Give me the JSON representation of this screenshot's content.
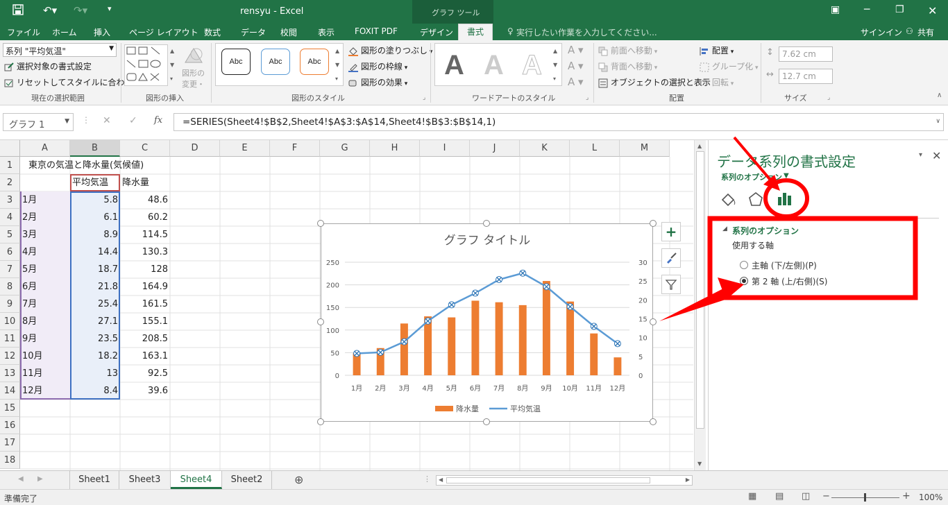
{
  "window": {
    "title": "rensyu - Excel",
    "context_group": "グラフ ツール"
  },
  "account": {
    "signin": "サインイン",
    "share": "共有"
  },
  "tabs": [
    {
      "label": "ファイル"
    },
    {
      "label": "ホーム"
    },
    {
      "label": "挿入"
    },
    {
      "label": "ページ レイアウト"
    },
    {
      "label": "数式"
    },
    {
      "label": "データ"
    },
    {
      "label": "校閲"
    },
    {
      "label": "表示"
    },
    {
      "label": "FOXIT PDF"
    },
    {
      "label": "デザイン"
    },
    {
      "label": "書式"
    }
  ],
  "tell_me": "実行したい作業を入力してください...",
  "ribbon": {
    "selection": {
      "dropdown": "系列 \"平均気温\"",
      "format_selection": "選択対象の書式設定",
      "reset": "リセットしてスタイルに合わせる",
      "label": "現在の選択範囲"
    },
    "insert_shapes": {
      "change_shape_1": "図形の",
      "change_shape_2": "変更・",
      "label": "図形の挿入"
    },
    "shape_styles": {
      "samples": [
        "Abc",
        "Abc",
        "Abc"
      ],
      "fill": "図形の塗りつぶし",
      "outline": "図形の枠線",
      "effects": "図形の効果",
      "label": "図形のスタイル"
    },
    "wordart": {
      "samples": [
        "A",
        "A",
        "A"
      ],
      "label": "ワードアートのスタイル"
    },
    "arrange": {
      "bring_forward": "前面へ移動",
      "send_backward": "背面へ移動",
      "selection_pane": "オブジェクトの選択と表示",
      "align": "配置",
      "group": "グループ化",
      "rotate": "回転",
      "label": "配置"
    },
    "size": {
      "height": "7.62 cm",
      "width": "12.7 cm",
      "label": "サイズ"
    }
  },
  "formula_bar": {
    "name_box": "グラフ 1",
    "fx": "fx",
    "formula": "=SERIES(Sheet4!$B$2,Sheet4!$A$3:$A$14,Sheet4!$B$3:$B$14,1)"
  },
  "grid": {
    "columns": [
      "A",
      "B",
      "C",
      "D",
      "E",
      "F",
      "G",
      "H",
      "I",
      "J",
      "K",
      "L",
      "M"
    ],
    "rows": [
      "1",
      "2",
      "3",
      "4",
      "5",
      "6",
      "7",
      "8",
      "9",
      "10",
      "11",
      "12",
      "13",
      "14",
      "15",
      "16",
      "17",
      "18"
    ],
    "title_cell": "東京の気温と降水量(気候値)",
    "header_b": "平均気温",
    "header_c": "降水量",
    "data": [
      {
        "month": "1月",
        "temp": "5.8",
        "rain": "48.6"
      },
      {
        "month": "2月",
        "temp": "6.1",
        "rain": "60.2"
      },
      {
        "month": "3月",
        "temp": "8.9",
        "rain": "114.5"
      },
      {
        "month": "4月",
        "temp": "14.4",
        "rain": "130.3"
      },
      {
        "month": "5月",
        "temp": "18.7",
        "rain": "128"
      },
      {
        "month": "6月",
        "temp": "21.8",
        "rain": "164.9"
      },
      {
        "month": "7月",
        "temp": "25.4",
        "rain": "161.5"
      },
      {
        "month": "8月",
        "temp": "27.1",
        "rain": "155.1"
      },
      {
        "month": "9月",
        "temp": "23.5",
        "rain": "208.5"
      },
      {
        "month": "10月",
        "temp": "18.2",
        "rain": "163.1"
      },
      {
        "month": "11月",
        "temp": "13",
        "rain": "92.5"
      },
      {
        "month": "12月",
        "temp": "8.4",
        "rain": "39.6"
      }
    ]
  },
  "chart_data": {
    "type": "bar",
    "title": "グラフ タイトル",
    "categories": [
      "1月",
      "2月",
      "3月",
      "4月",
      "5月",
      "6月",
      "7月",
      "8月",
      "9月",
      "10月",
      "11月",
      "12月"
    ],
    "series": [
      {
        "name": "降水量",
        "type": "bar",
        "axis": "primary",
        "color": "#ed7d31",
        "values": [
          48.6,
          60.2,
          114.5,
          130.3,
          128,
          164.9,
          161.5,
          155.1,
          208.5,
          163.1,
          92.5,
          39.6
        ]
      },
      {
        "name": "平均気温",
        "type": "line",
        "axis": "secondary",
        "color": "#5b9bd5",
        "values": [
          5.8,
          6.1,
          8.9,
          14.4,
          18.7,
          21.8,
          25.4,
          27.1,
          23.5,
          18.2,
          13,
          8.4
        ]
      }
    ],
    "y_primary": {
      "range": [
        0,
        250
      ],
      "ticks": [
        "0",
        "50",
        "100",
        "150",
        "200",
        "250"
      ]
    },
    "y_secondary": {
      "range": [
        0,
        30
      ],
      "ticks": [
        "0",
        "5",
        "10",
        "15",
        "20",
        "25",
        "30"
      ]
    },
    "legend_position": "bottom",
    "grid": "horizontal"
  },
  "pane": {
    "title": "データ系列の書式設定",
    "options_dropdown": "系列のオプション",
    "section": "系列のオプション",
    "axis_label": "使用する軸",
    "primary_axis": "主軸 (下/左側)(P)",
    "secondary_axis": "第 2 軸 (上/右側)(S)"
  },
  "sheets": [
    {
      "label": "Sheet1"
    },
    {
      "label": "Sheet3"
    },
    {
      "label": "Sheet4"
    },
    {
      "label": "Sheet2"
    }
  ],
  "status": {
    "ready": "準備完了",
    "zoom": "100%"
  },
  "colors": {
    "excel_green": "#217346",
    "annotation_red": "#ff0000",
    "bar_orange": "#ed7d31",
    "line_blue": "#5b9bd5"
  }
}
